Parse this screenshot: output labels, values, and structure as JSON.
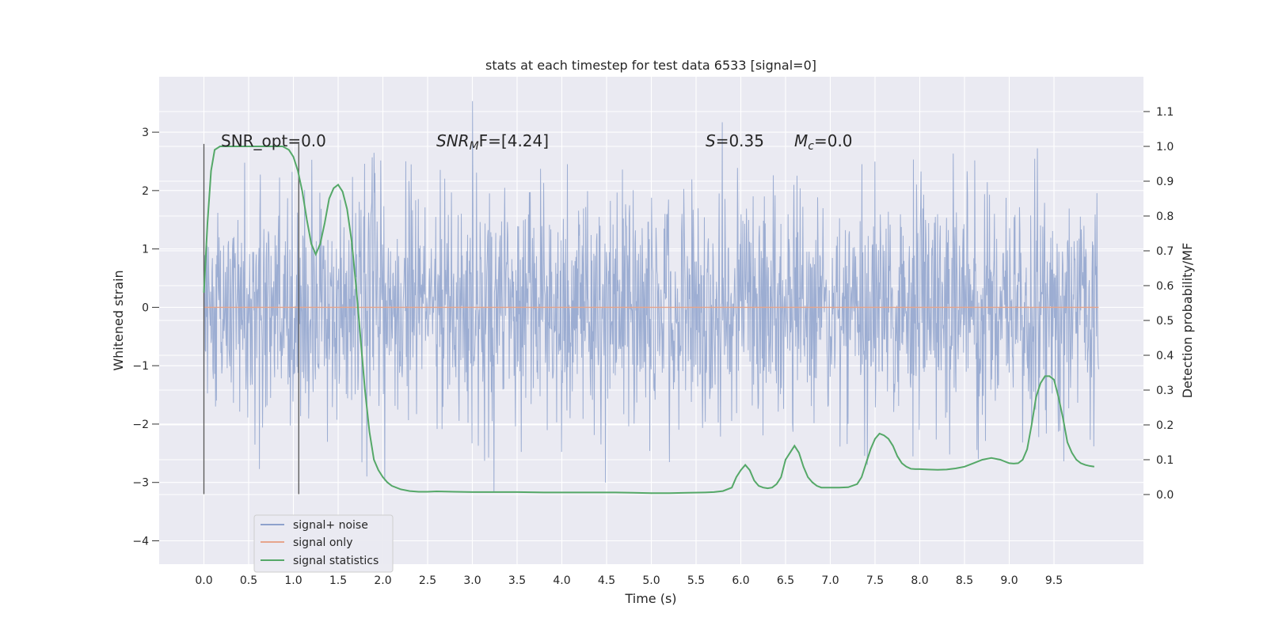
{
  "chart_data": {
    "type": "line",
    "title": "stats at each timestep for test data 6533 [signal=0]",
    "xlabel": "Time (s)",
    "ylabel": "Whitened strain",
    "ylabel_right": "Detection probability/MF",
    "xlim": [
      -0.5,
      10.5
    ],
    "ylim": [
      -4.4,
      3.95
    ],
    "ylim_right": [
      -0.2,
      1.2
    ],
    "x_ticks": [
      "0.0",
      "0.5",
      "1.0",
      "1.5",
      "2.0",
      "2.5",
      "3.0",
      "3.5",
      "4.0",
      "4.5",
      "5.0",
      "5.5",
      "6.0",
      "6.5",
      "7.0",
      "7.5",
      "8.0",
      "8.5",
      "9.0",
      "9.5"
    ],
    "y_ticks": [
      "3",
      "2",
      "1",
      "0",
      "−1",
      "−2",
      "−3",
      "−4"
    ],
    "y_right_ticks": [
      "0.0",
      "0.1",
      "0.2",
      "0.3",
      "0.4",
      "0.5",
      "0.6",
      "0.7",
      "0.8",
      "0.9",
      "1.0",
      "1.1"
    ],
    "grid": true,
    "legend_position": "lower-left",
    "annotations": {
      "snr_opt": "SNR_opt=0.0",
      "snr_mf_main": "SNR",
      "snr_mf_sub": "M",
      "snr_mf_rest": "F=[4.24]",
      "s_symbol": "S",
      "s_value": "=0.35",
      "mc_symbol": "M",
      "mc_sub": "c",
      "mc_value": "=0.0"
    },
    "vertical_lines_x": [
      0.0,
      1.06
    ],
    "vertical_lines_range": [
      -3.2,
      2.8
    ],
    "series": [
      {
        "name": "signal+ noise",
        "color": "#8ea2cc",
        "description_range": [
          -4.0,
          3.6
        ],
        "x_range": [
          0.0,
          10.0
        ],
        "samples": 2000
      },
      {
        "name": "signal only",
        "color": "#e6a58c",
        "x": [
          0.0,
          10.0
        ],
        "y": [
          0.0,
          0.0
        ]
      },
      {
        "name": "signal statistics",
        "color": "#55a868",
        "axis": "right",
        "x": [
          0.0,
          0.04,
          0.08,
          0.12,
          0.18,
          0.25,
          0.3,
          0.4,
          0.5,
          0.6,
          0.7,
          0.8,
          0.88,
          0.95,
          1.0,
          1.05,
          1.1,
          1.15,
          1.2,
          1.25,
          1.3,
          1.35,
          1.4,
          1.45,
          1.5,
          1.55,
          1.6,
          1.65,
          1.7,
          1.75,
          1.8,
          1.85,
          1.9,
          1.95,
          2.0,
          2.05,
          2.1,
          2.2,
          2.3,
          2.4,
          2.5,
          2.6,
          2.8,
          3.0,
          3.2,
          3.5,
          3.8,
          4.0,
          4.3,
          4.6,
          4.8,
          5.0,
          5.2,
          5.4,
          5.6,
          5.7,
          5.8,
          5.9,
          5.95,
          6.0,
          6.05,
          6.1,
          6.15,
          6.2,
          6.25,
          6.3,
          6.35,
          6.4,
          6.45,
          6.5,
          6.55,
          6.6,
          6.65,
          6.7,
          6.75,
          6.8,
          6.85,
          6.9,
          7.0,
          7.1,
          7.2,
          7.3,
          7.35,
          7.4,
          7.45,
          7.5,
          7.55,
          7.6,
          7.65,
          7.7,
          7.75,
          7.8,
          7.85,
          7.9,
          7.95,
          8.0,
          8.1,
          8.2,
          8.3,
          8.4,
          8.5,
          8.6,
          8.7,
          8.8,
          8.9,
          9.0,
          9.05,
          9.1,
          9.15,
          9.2,
          9.25,
          9.3,
          9.35,
          9.4,
          9.45,
          9.5,
          9.55,
          9.6,
          9.65,
          9.7,
          9.75,
          9.8,
          9.85,
          9.9,
          9.95
        ],
        "y": [
          0.58,
          0.78,
          0.93,
          0.99,
          1.0,
          1.0,
          1.0,
          1.0,
          1.0,
          1.0,
          1.0,
          1.0,
          1.0,
          0.99,
          0.97,
          0.93,
          0.87,
          0.79,
          0.72,
          0.69,
          0.72,
          0.78,
          0.85,
          0.88,
          0.89,
          0.87,
          0.82,
          0.73,
          0.6,
          0.45,
          0.3,
          0.18,
          0.1,
          0.07,
          0.05,
          0.035,
          0.025,
          0.015,
          0.01,
          0.008,
          0.008,
          0.009,
          0.008,
          0.007,
          0.007,
          0.007,
          0.006,
          0.006,
          0.006,
          0.006,
          0.005,
          0.004,
          0.004,
          0.005,
          0.006,
          0.007,
          0.01,
          0.02,
          0.05,
          0.07,
          0.085,
          0.07,
          0.04,
          0.025,
          0.02,
          0.018,
          0.02,
          0.03,
          0.05,
          0.1,
          0.12,
          0.14,
          0.12,
          0.08,
          0.05,
          0.035,
          0.025,
          0.02,
          0.02,
          0.02,
          0.021,
          0.03,
          0.05,
          0.09,
          0.13,
          0.16,
          0.175,
          0.17,
          0.16,
          0.14,
          0.11,
          0.09,
          0.08,
          0.074,
          0.073,
          0.073,
          0.072,
          0.071,
          0.072,
          0.075,
          0.08,
          0.09,
          0.1,
          0.105,
          0.1,
          0.09,
          0.089,
          0.09,
          0.1,
          0.13,
          0.2,
          0.28,
          0.32,
          0.34,
          0.34,
          0.33,
          0.28,
          0.22,
          0.15,
          0.12,
          0.1,
          0.09,
          0.085,
          0.082,
          0.08
        ],
        "x_pad": true
      }
    ]
  }
}
